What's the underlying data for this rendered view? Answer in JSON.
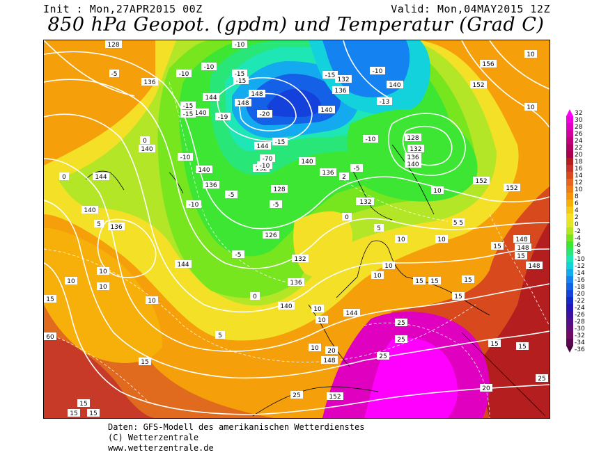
{
  "header": {
    "init": "Init : Mon,27APR2015 00Z",
    "valid": "Valid: Mon,04MAY2015 12Z",
    "title": "850 hPa Geopot. (gpdm) und Temperatur (Grad C)"
  },
  "footer": {
    "line1": "Daten: GFS-Modell des amerikanischen Wetterdienstes",
    "line2": "(C) Wetterzentrale",
    "line3": "www.wetterzentrale.de"
  },
  "legend": {
    "labels": [
      "32",
      "30",
      "28",
      "26",
      "24",
      "22",
      "20",
      "18",
      "16",
      "14",
      "12",
      "10",
      "8",
      "6",
      "4",
      "2",
      "0",
      "-2",
      "-4",
      "-6",
      "-8",
      "-10",
      "-12",
      "-14",
      "-16",
      "-18",
      "-20",
      "-22",
      "-24",
      "-26",
      "-28",
      "-30",
      "-32",
      "-34",
      "-36"
    ],
    "colors": [
      "#ff00ff",
      "#f000e0",
      "#e000c0",
      "#d0009a",
      "#c0007a",
      "#b00060",
      "#a8004a",
      "#b41e1e",
      "#c83228",
      "#d84a1e",
      "#e8641e",
      "#f07d14",
      "#f5960a",
      "#f7b00a",
      "#f7c814",
      "#f5e028",
      "#e0e628",
      "#b4e628",
      "#78e61e",
      "#3ce632",
      "#28e678",
      "#1ee6b4",
      "#14d2dc",
      "#14aaf0",
      "#1482f0",
      "#1460e6",
      "#1440dc",
      "#1428c8",
      "#2814b4",
      "#3c10a0",
      "#50108c",
      "#640c78",
      "#700a64",
      "#5a0850",
      "#46063c"
    ]
  },
  "map": {
    "contour_labels": {
      "geopotential": [
        "128",
        "136",
        "140",
        "144",
        "148",
        "132",
        "128",
        "132",
        "136",
        "140",
        "144",
        "148",
        "152",
        "156",
        "132",
        "136",
        "140",
        "128",
        "132",
        "128",
        "136",
        "140",
        "144",
        "152",
        "148",
        "148",
        "152"
      ],
      "temperature": [
        "-10",
        "-15",
        "-20",
        "-5",
        "0",
        "5",
        "10",
        "15",
        "20",
        "25",
        "-13",
        "-19",
        "-70"
      ]
    }
  }
}
